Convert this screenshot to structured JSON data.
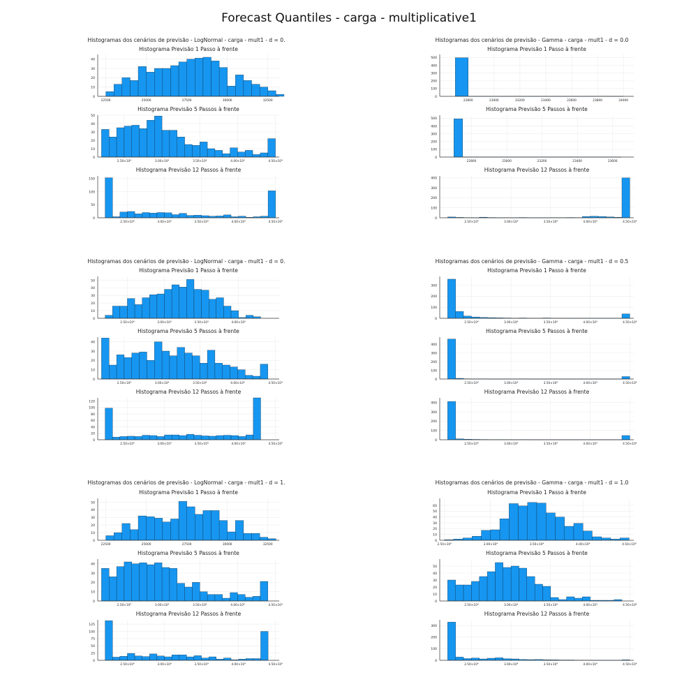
{
  "main_title": "Forecast Quantiles - carga - multiplicative1",
  "colors": {
    "bar": "#1696f0",
    "bar_stroke": "#0b2a44",
    "grid": "#ececec",
    "axis": "#333333"
  },
  "chart_data": [
    {
      "type": "bar",
      "group_title": "Histogramas dos cenários de previsão - LogNormal - carga - mult1 - d = 0.",
      "title": "Histograma Previsão 1 Passo à frente",
      "xlim": [
        22000,
        33200
      ],
      "ylim": [
        0,
        45
      ],
      "yticks": [
        0,
        10,
        20,
        30,
        40
      ],
      "xticks": [
        22500,
        25000,
        27500,
        30000,
        32500
      ],
      "xticklabels": [
        "22500",
        "25000",
        "27500",
        "30000",
        "32500"
      ],
      "bin_start": 22500,
      "bin_width": 500,
      "values": [
        5,
        13,
        20,
        17,
        32,
        26,
        30,
        30,
        33,
        37,
        40,
        41,
        42,
        38,
        31,
        11,
        23,
        17,
        13,
        10,
        6,
        2
      ]
    },
    {
      "type": "bar",
      "title": "Histograma Previsão 5 Passos à frente",
      "xlim": [
        21500,
        45500
      ],
      "ylim": [
        0,
        50
      ],
      "yticks": [
        0,
        10,
        20,
        30,
        40,
        50
      ],
      "xticks": [
        25000,
        30000,
        35000,
        40000,
        45000
      ],
      "xticklabels": [
        "2.50×10⁴",
        "3.00×10⁴",
        "3.50×10⁴",
        "4.00×10⁴",
        "4.50×10⁴"
      ],
      "bin_start": 22000,
      "bin_width": 1000,
      "values": [
        33,
        24,
        35,
        37,
        38,
        34,
        44,
        49,
        32,
        32,
        24,
        15,
        14,
        18,
        10,
        8,
        4,
        11,
        6,
        8,
        3,
        5,
        22
      ]
    },
    {
      "type": "bar",
      "title": "Histograma Previsão 12 Passos à frente",
      "xlim": [
        21000,
        45500
      ],
      "ylim": [
        0,
        160
      ],
      "yticks": [
        0,
        50,
        100,
        150
      ],
      "xticks": [
        25000,
        30000,
        35000,
        40000,
        45000
      ],
      "xticklabels": [
        "2.50×10⁴",
        "3.00×10⁴",
        "3.50×10⁴",
        "4.00×10⁴",
        "4.50×10⁴"
      ],
      "bin_start": 22000,
      "bin_width": 1000,
      "values": [
        153,
        4,
        22,
        24,
        15,
        20,
        18,
        20,
        19,
        12,
        17,
        9,
        10,
        8,
        6,
        7,
        11,
        4,
        6,
        2,
        4,
        6,
        103
      ]
    },
    {
      "type": "bar",
      "group_title": "Histogramas dos cenários de previsão - LogNormal - carga - mult1 - d = 0.",
      "title": "Histograma Previsão 1 Passo à frente",
      "xlim": [
        21000,
        45500
      ],
      "ylim": [
        0,
        55
      ],
      "yticks": [
        0,
        10,
        20,
        30,
        40,
        50
      ],
      "xticks": [
        25000,
        30000,
        35000,
        40000
      ],
      "xticklabels": [
        "2.50×10⁴",
        "3.00×10⁴",
        "3.50×10⁴",
        "4.00×10⁴"
      ],
      "bin_start": 22000,
      "bin_width": 1000,
      "values": [
        4,
        16,
        16,
        26,
        18,
        27,
        31,
        32,
        38,
        44,
        41,
        51,
        38,
        37,
        25,
        27,
        16,
        10,
        1,
        4,
        2
      ]
    },
    {
      "type": "bar",
      "title": "Histograma Previsão 5 Passos à frente",
      "xlim": [
        21500,
        45500
      ],
      "ylim": [
        0,
        45
      ],
      "yticks": [
        0,
        10,
        20,
        30,
        40
      ],
      "xticks": [
        25000,
        30000,
        35000,
        40000,
        45000
      ],
      "xticklabels": [
        "2.50×10⁴",
        "3.00×10⁴",
        "3.50×10⁴",
        "4.00×10⁴",
        "4.50×10⁴"
      ],
      "bin_start": 22000,
      "bin_width": 1000,
      "values": [
        44,
        15,
        26,
        23,
        28,
        29,
        20,
        40,
        30,
        25,
        34,
        28,
        25,
        17,
        31,
        17,
        15,
        13,
        10,
        4,
        3,
        16
      ]
    },
    {
      "type": "bar",
      "title": "Histograma Previsão 12 Passos à frente",
      "xlim": [
        21000,
        45500
      ],
      "ylim": [
        0,
        130
      ],
      "yticks": [
        0,
        20,
        40,
        60,
        80,
        100,
        120
      ],
      "xticks": [
        25000,
        30000,
        35000,
        40000,
        45000
      ],
      "xticklabels": [
        "2.50×10⁴",
        "3.00×10⁴",
        "3.50×10⁴",
        "4.00×10⁴",
        "4.50×10⁴"
      ],
      "bin_start": 22000,
      "bin_width": 1000,
      "values": [
        98,
        8,
        10,
        11,
        10,
        14,
        13,
        10,
        15,
        15,
        13,
        17,
        14,
        12,
        11,
        13,
        14,
        13,
        10,
        15,
        130
      ]
    },
    {
      "type": "bar",
      "group_title": "Histogramas dos cenários de previsão - LogNormal - carga - mult1 - d = 1.",
      "title": "Histograma Previsão 1 Passo à frente",
      "xlim": [
        22000,
        33200
      ],
      "ylim": [
        0,
        55
      ],
      "yticks": [
        0,
        10,
        20,
        30,
        40,
        50
      ],
      "xticks": [
        22500,
        25000,
        27500,
        30000,
        32500
      ],
      "xticklabels": [
        "22500",
        "25000",
        "27500",
        "30000",
        "32500"
      ],
      "bin_start": 22500,
      "bin_width": 500,
      "values": [
        6,
        10,
        22,
        14,
        32,
        31,
        29,
        24,
        28,
        51,
        44,
        34,
        39,
        39,
        26,
        11,
        26,
        9,
        9,
        4,
        2
      ]
    },
    {
      "type": "bar",
      "title": "Histograma Previsão 5 Passos à frente",
      "xlim": [
        21500,
        45500
      ],
      "ylim": [
        0,
        45
      ],
      "yticks": [
        0,
        10,
        20,
        30,
        40
      ],
      "xticks": [
        25000,
        30000,
        35000,
        40000,
        45000
      ],
      "xticklabels": [
        "2.50×10⁴",
        "3.00×10⁴",
        "3.50×10⁴",
        "4.00×10⁴",
        "4.50×10⁴"
      ],
      "bin_start": 22000,
      "bin_width": 1000,
      "values": [
        35,
        26,
        37,
        42,
        40,
        41,
        39,
        41,
        36,
        35,
        19,
        15,
        20,
        10,
        7,
        7,
        3,
        9,
        7,
        4,
        5,
        21
      ]
    },
    {
      "type": "bar",
      "title": "Histograma Previsão 12 Passos à frente",
      "xlim": [
        21000,
        45500
      ],
      "ylim": [
        0,
        140
      ],
      "yticks": [
        0,
        25,
        50,
        75,
        100,
        125
      ],
      "xticks": [
        25000,
        30000,
        35000,
        40000,
        45000
      ],
      "xticklabels": [
        "2.50×10⁴",
        "3.00×10⁴",
        "3.50×10⁴",
        "4.00×10⁴",
        "4.50×10⁴"
      ],
      "bin_start": 22000,
      "bin_width": 1000,
      "values": [
        137,
        11,
        14,
        24,
        15,
        13,
        22,
        15,
        12,
        19,
        19,
        12,
        16,
        8,
        12,
        4,
        8,
        2,
        4,
        6,
        6,
        100
      ]
    },
    {
      "type": "bar",
      "group_title": "Histogramas dos cenários de previsão - Gamma - carga - mult1 - d = 0.0",
      "title": "Histograma Previsão 1 Passo à frente",
      "xlim": [
        22580,
        24080
      ],
      "ylim": [
        0,
        540
      ],
      "yticks": [
        0,
        100,
        200,
        300,
        400,
        500
      ],
      "xticks": [
        22800,
        23000,
        23200,
        23400,
        23600,
        23800,
        24000
      ],
      "xticklabels": [
        "22800",
        "23000",
        "23200",
        "23400",
        "23600",
        "23800",
        "24000"
      ],
      "bin_start": 22700,
      "bin_width": 100,
      "values": [
        498,
        1,
        1,
        1,
        2,
        1,
        1,
        1,
        1,
        1,
        1,
        2,
        1
      ]
    },
    {
      "type": "bar",
      "title": "Histograma Previsão 5 Passos à frente",
      "xlim": [
        22620,
        23720
      ],
      "ylim": [
        0,
        540
      ],
      "yticks": [
        0,
        100,
        200,
        300,
        400,
        500
      ],
      "xticks": [
        22800,
        23000,
        23200,
        23400,
        23600
      ],
      "xticklabels": [
        "22800",
        "23000",
        "23200",
        "23400",
        "23600"
      ],
      "bin_start": 22700,
      "bin_width": 50,
      "values": [
        492,
        1,
        1,
        1,
        1,
        1,
        1,
        1,
        1,
        1,
        1,
        1,
        1,
        1,
        1,
        1,
        1,
        1,
        1
      ]
    },
    {
      "type": "bar",
      "title": "Histograma Previsão 12 Passos à frente",
      "xlim": [
        21000,
        45500
      ],
      "ylim": [
        0,
        420
      ],
      "yticks": [
        0,
        100,
        200,
        300,
        400
      ],
      "xticks": [
        25000,
        30000,
        35000,
        40000,
        45000
      ],
      "xticklabels": [
        "2.50×10⁴",
        "3.00×10⁴",
        "3.50×10⁴",
        "4.00×10⁴",
        "4.50×10⁴"
      ],
      "bin_start": 22000,
      "bin_width": 1000,
      "values": [
        8,
        4,
        2,
        1,
        6,
        3,
        1,
        2,
        1,
        3,
        1,
        1,
        1,
        2,
        2,
        3,
        2,
        13,
        15,
        13,
        9,
        5,
        400
      ]
    },
    {
      "type": "bar",
      "group_title": "Histogramas dos cenários de previsão - Gamma - carga - mult1 - d = 0.5",
      "title": "Histograma Previsão 1 Passo à frente",
      "xlim": [
        21000,
        45500
      ],
      "ylim": [
        0,
        380
      ],
      "yticks": [
        0,
        100,
        200,
        300
      ],
      "xticks": [
        25000,
        30000,
        35000,
        40000,
        45000
      ],
      "xticklabels": [
        "2.50×10⁴",
        "3.00×10⁴",
        "3.50×10⁴",
        "4.00×10⁴",
        "4.50×10⁴"
      ],
      "bin_start": 22000,
      "bin_width": 1000,
      "values": [
        355,
        62,
        20,
        12,
        8,
        6,
        4,
        3,
        2,
        3,
        2,
        2,
        3,
        2,
        2,
        1,
        2,
        1,
        1,
        1,
        1,
        1,
        40
      ]
    },
    {
      "type": "bar",
      "title": "Histograma Previsão 5 Passos à frente",
      "xlim": [
        21000,
        45500
      ],
      "ylim": [
        0,
        480
      ],
      "yticks": [
        0,
        100,
        200,
        300,
        400
      ],
      "xticks": [
        25000,
        30000,
        35000,
        40000,
        45000
      ],
      "xticklabels": [
        "2.50×10⁴",
        "3.00×10⁴",
        "3.50×10⁴",
        "4.00×10⁴",
        "4.50×10⁴"
      ],
      "bin_start": 22000,
      "bin_width": 1000,
      "values": [
        458,
        8,
        3,
        2,
        2,
        1,
        1,
        1,
        1,
        2,
        1,
        1,
        1,
        1,
        1,
        1,
        1,
        1,
        1,
        1,
        1,
        1,
        28
      ]
    },
    {
      "type": "bar",
      "title": "Histograma Previsão 12 Passos à frente",
      "xlim": [
        21000,
        45500
      ],
      "ylim": [
        0,
        450
      ],
      "yticks": [
        0,
        100,
        200,
        300,
        400
      ],
      "xticks": [
        25000,
        30000,
        35000,
        40000,
        45000
      ],
      "xticklabels": [
        "2.50×10⁴",
        "3.00×10⁴",
        "3.50×10⁴",
        "4.00×10⁴",
        "4.50×10⁴"
      ],
      "bin_start": 22000,
      "bin_width": 1000,
      "values": [
        410,
        10,
        6,
        4,
        3,
        2,
        2,
        2,
        1,
        2,
        1,
        1,
        1,
        1,
        1,
        1,
        1,
        1,
        1,
        1,
        1,
        1,
        45
      ]
    },
    {
      "type": "bar",
      "group_title": "Histogramas dos cenários de previsão - Gamma - carga - mult1 - d = 1.0",
      "title": "Histograma Previsão 1 Passo à frente",
      "xlim": [
        24500,
        45500
      ],
      "ylim": [
        0,
        72
      ],
      "yticks": [
        0,
        10,
        20,
        30,
        40,
        50,
        60
      ],
      "xticks": [
        25000,
        30000,
        35000,
        40000,
        45000
      ],
      "xticklabels": [
        "2.50×10⁴",
        "3.00×10⁴",
        "3.50×10⁴",
        "4.00×10⁴",
        "4.50×10⁴"
      ],
      "bin_start": 25000,
      "bin_width": 1000,
      "values": [
        1,
        2,
        4,
        7,
        17,
        18,
        37,
        63,
        59,
        65,
        64,
        47,
        40,
        24,
        29,
        16,
        6,
        4,
        2,
        4
      ]
    },
    {
      "type": "bar",
      "title": "Histograma Previsão 5 Passos à frente",
      "xlim": [
        21000,
        45500
      ],
      "ylim": [
        0,
        60
      ],
      "yticks": [
        0,
        10,
        20,
        30,
        40,
        50
      ],
      "xticks": [
        25000,
        30000,
        35000,
        40000,
        45000
      ],
      "xticklabels": [
        "2.50×10⁴",
        "3.00×10⁴",
        "3.50×10⁴",
        "4.00×10⁴",
        "4.50×10⁴"
      ],
      "bin_start": 22000,
      "bin_width": 1000,
      "values": [
        30,
        23,
        23,
        28,
        35,
        42,
        55,
        48,
        50,
        47,
        35,
        24,
        21,
        5,
        2,
        6,
        4,
        6,
        1,
        1,
        1,
        2
      ]
    },
    {
      "type": "bar",
      "title": "Histograma Previsão 12 Passos à frente",
      "xlim": [
        21000,
        45500
      ],
      "ylim": [
        0,
        350
      ],
      "yticks": [
        0,
        100,
        200,
        300
      ],
      "xticks": [
        25000,
        30000,
        35000,
        40000,
        45000
      ],
      "xticklabels": [
        "2.50×10⁴",
        "3.00×10⁴",
        "3.50×10⁴",
        "4.00×10⁴",
        "4.50×10⁴"
      ],
      "bin_start": 22000,
      "bin_width": 1000,
      "values": [
        330,
        28,
        15,
        20,
        12,
        18,
        22,
        14,
        12,
        8,
        6,
        7,
        5,
        4,
        3,
        3,
        2,
        2,
        1,
        1,
        1,
        1,
        4
      ]
    }
  ]
}
